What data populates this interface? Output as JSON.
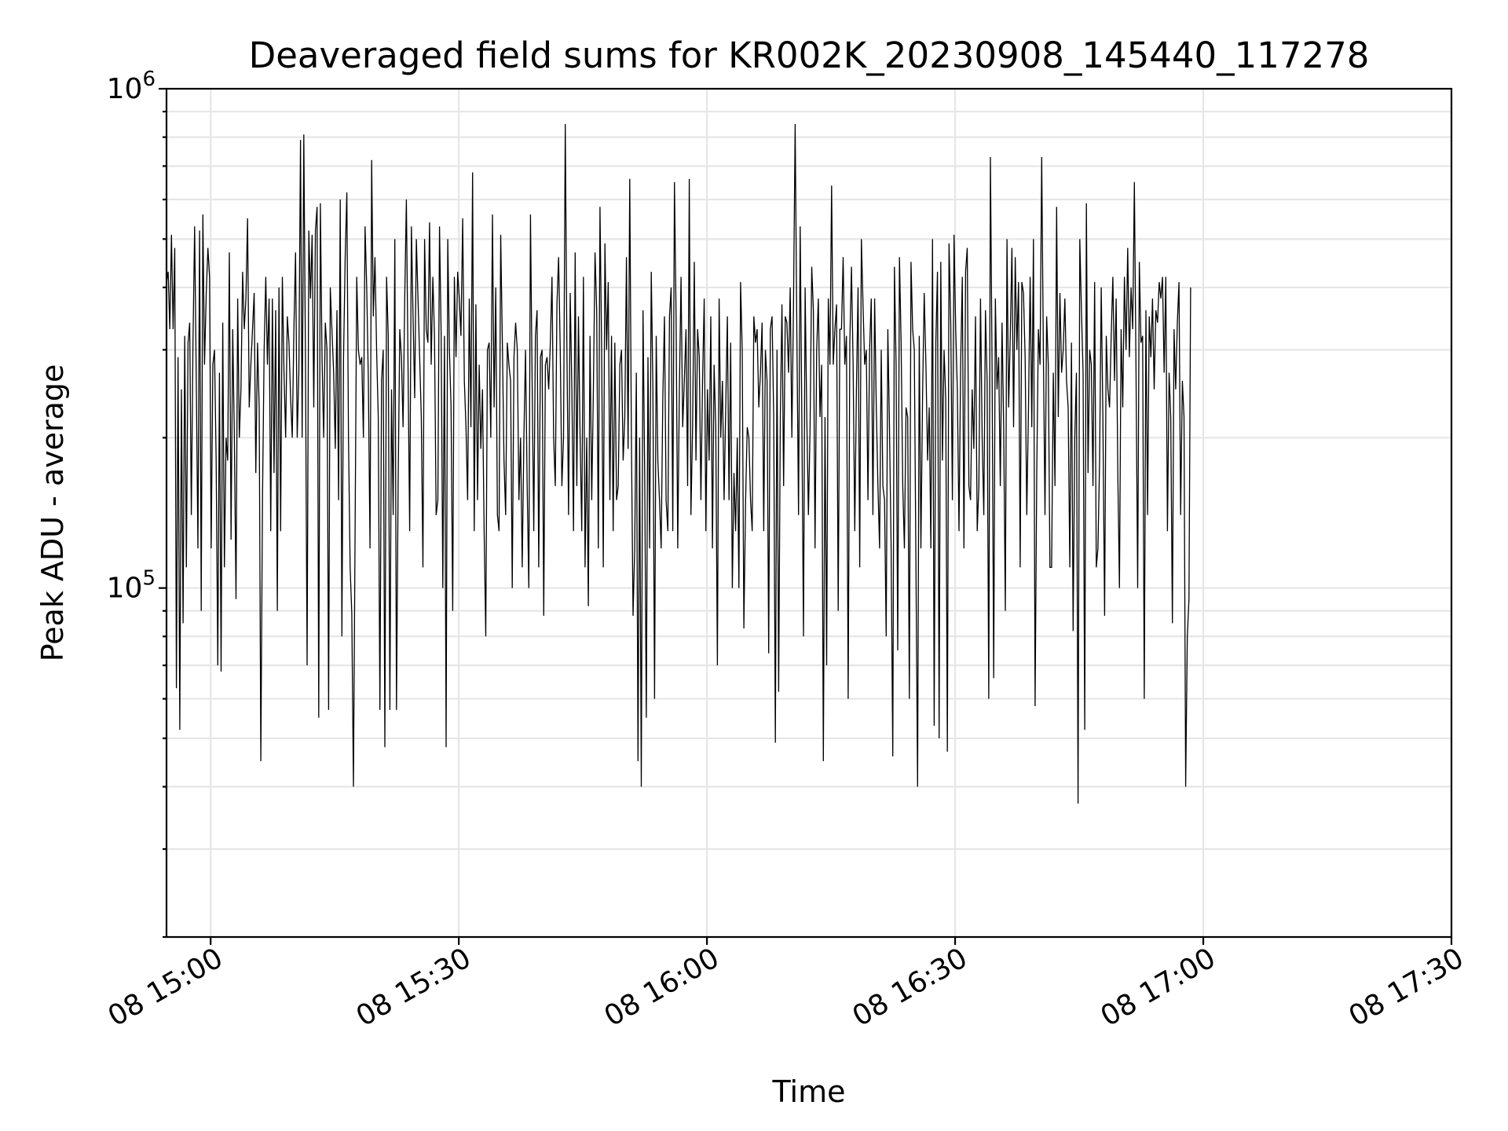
{
  "chart_data": {
    "type": "line",
    "title": "Deaveraged field sums for KR002K_20230908_145440_117278",
    "xlabel": "Time",
    "ylabel": "Peak ADU - average",
    "yscale": "log",
    "ylim": [
      20000,
      1000000
    ],
    "xlim": [
      "2023-09-08 14:54:40",
      "2023-09-08 17:30:00"
    ],
    "grid": true,
    "x_ticks": [
      "2023-09-08 15:00:00",
      "2023-09-08 15:30:00",
      "2023-09-08 16:00:00",
      "2023-09-08 16:30:00",
      "2023-09-08 17:00:00",
      "2023-09-08 17:30:00"
    ],
    "x_tick_labels": [
      "08 15:00",
      "08 15:30",
      "08 16:00",
      "08 16:30",
      "08 17:00",
      "08 17:30"
    ],
    "y_tick_labels": [
      {
        "base": "10",
        "exp": "5"
      },
      {
        "base": "10",
        "exp": "6"
      }
    ],
    "series": [
      {
        "color": "#000000",
        "x_start": "2023-09-08 14:54:40",
        "x_step_seconds": 12,
        "values": [
          410000,
          430000,
          330000,
          510000,
          330000,
          480000,
          63000,
          290000,
          52000,
          250000,
          85000,
          320000,
          110000,
          310000,
          340000,
          140000,
          310000,
          530000,
          260000,
          120000,
          520000,
          90000,
          560000,
          280000,
          390000,
          480000,
          420000,
          120000,
          280000,
          300000,
          180000,
          70000,
          270000,
          68000,
          340000,
          110000,
          200000,
          180000,
          470000,
          125000,
          330000,
          200000,
          95000,
          380000,
          200000,
          250000,
          430000,
          330000,
          380000,
          550000,
          230000,
          280000,
          330000,
          390000,
          170000,
          310000,
          230000,
          45000,
          150000,
          300000,
          420000,
          280000,
          380000,
          130000,
          380000,
          170000,
          360000,
          90000,
          400000,
          130000,
          420000,
          270000,
          200000,
          350000,
          310000,
          240000,
          200000,
          330000,
          470000,
          200000,
          270000,
          790000,
          200000,
          810000,
          290000,
          70000,
          520000,
          380000,
          510000,
          230000,
          520000,
          580000,
          55000,
          590000,
          290000,
          200000,
          340000,
          300000,
          57000,
          400000,
          330000,
          270000,
          190000,
          360000,
          150000,
          600000,
          80000,
          290000,
          460000,
          620000,
          200000,
          110000,
          89000,
          40000,
          130000,
          420000,
          300000,
          280000,
          290000,
          200000,
          530000,
          400000,
          260000,
          120000,
          720000,
          350000,
          460000,
          300000,
          220000,
          57000,
          260000,
          300000,
          48000,
          420000,
          320000,
          57000,
          250000,
          140000,
          500000,
          57000,
          160000,
          330000,
          290000,
          210000,
          380000,
          600000,
          280000,
          130000,
          530000,
          350000,
          240000,
          500000,
          380000,
          290000,
          220000,
          110000,
          500000,
          330000,
          310000,
          540000,
          280000,
          420000,
          320000,
          140000,
          150000,
          530000,
          320000,
          100000,
          320000,
          48000,
          500000,
          300000,
          230000,
          90000,
          420000,
          290000,
          430000,
          380000,
          320000,
          550000,
          260000,
          210000,
          150000,
          380000,
          210000,
          680000,
          130000,
          370000,
          150000,
          280000,
          190000,
          250000,
          130000,
          80000,
          300000,
          310000,
          200000,
          560000,
          230000,
          400000,
          140000,
          130000,
          510000,
          310000,
          180000,
          140000,
          310000,
          280000,
          260000,
          100000,
          290000,
          340000,
          300000,
          150000,
          200000,
          110000,
          200000,
          300000,
          160000,
          100000,
          560000,
          260000,
          130000,
          320000,
          360000,
          110000,
          290000,
          300000,
          88000,
          280000,
          290000,
          250000,
          310000,
          420000,
          200000,
          160000,
          370000,
          460000,
          300000,
          160000,
          200000,
          850000,
          300000,
          140000,
          390000,
          250000,
          130000,
          470000,
          160000,
          350000,
          200000,
          130000,
          420000,
          110000,
          200000,
          92000,
          320000,
          150000,
          250000,
          470000,
          360000,
          120000,
          580000,
          300000,
          110000,
          490000,
          300000,
          410000,
          150000,
          320000,
          130000,
          310000,
          150000,
          160000,
          280000,
          300000,
          180000,
          220000,
          460000,
          190000,
          660000,
          200000,
          88000,
          120000,
          270000,
          45000,
          200000,
          40000,
          360000,
          170000,
          55000,
          290000,
          120000,
          430000,
          250000,
          60000,
          320000,
          180000,
          150000,
          120000,
          240000,
          350000,
          150000,
          130000,
          350000,
          400000,
          130000,
          650000,
          350000,
          120000,
          250000,
          420000,
          210000,
          260000,
          330000,
          160000,
          660000,
          140000,
          210000,
          450000,
          180000,
          330000,
          290000,
          150000,
          260000,
          380000,
          130000,
          250000,
          180000,
          350000,
          120000,
          280000,
          210000,
          70000,
          380000,
          200000,
          260000,
          150000,
          230000,
          350000,
          150000,
          310000,
          100000,
          170000,
          130000,
          200000,
          100000,
          410000,
          300000,
          83000,
          150000,
          210000,
          200000,
          150000,
          130000,
          350000,
          310000,
          330000,
          230000,
          270000,
          340000,
          130000,
          300000,
          260000,
          74000,
          330000,
          350000,
          220000,
          49000,
          300000,
          62000,
          220000,
          370000,
          160000,
          350000,
          340000,
          270000,
          400000,
          200000,
          370000,
          850000,
          320000,
          140000,
          530000,
          220000,
          80000,
          400000,
          220000,
          140000,
          210000,
          440000,
          360000,
          120000,
          300000,
          380000,
          220000,
          280000,
          45000,
          220000,
          70000,
          380000,
          280000,
          640000,
          280000,
          330000,
          370000,
          90000,
          330000,
          330000,
          460000,
          280000,
          320000,
          60000,
          310000,
          440000,
          280000,
          130000,
          250000,
          400000,
          110000,
          500000,
          370000,
          280000,
          300000,
          150000,
          300000,
          380000,
          140000,
          380000,
          230000,
          160000,
          120000,
          300000,
          160000,
          150000,
          80000,
          330000,
          210000,
          120000,
          46000,
          440000,
          280000,
          75000,
          460000,
          310000,
          160000,
          120000,
          230000,
          220000,
          60000,
          450000,
          330000,
          300000,
          110000,
          40000,
          320000,
          120000,
          240000,
          390000,
          280000,
          180000,
          230000,
          120000,
          500000,
          53000,
          310000,
          430000,
          50000,
          450000,
          180000,
          300000,
          240000,
          47000,
          490000,
          340000,
          150000,
          510000,
          330000,
          250000,
          130000,
          280000,
          420000,
          120000,
          430000,
          480000,
          160000,
          150000,
          250000,
          190000,
          350000,
          130000,
          160000,
          380000,
          200000,
          140000,
          360000,
          260000,
          60000,
          730000,
          280000,
          66000,
          380000,
          250000,
          290000,
          160000,
          340000,
          210000,
          90000,
          500000,
          230000,
          320000,
          480000,
          210000,
          460000,
          300000,
          410000,
          110000,
          410000,
          390000,
          290000,
          140000,
          230000,
          420000,
          210000,
          500000,
          58000,
          170000,
          330000,
          280000,
          730000,
          300000,
          140000,
          350000,
          280000,
          110000,
          110000,
          270000,
          160000,
          580000,
          220000,
          390000,
          270000,
          300000,
          380000,
          260000,
          230000,
          110000,
          310000,
          82000,
          200000,
          270000,
          37000,
          500000,
          360000,
          270000,
          52000,
          590000,
          170000,
          300000,
          280000,
          160000,
          410000,
          110000,
          120000,
          180000,
          400000,
          220000,
          88000,
          320000,
          250000,
          230000,
          320000,
          420000,
          260000,
          380000,
          170000,
          100000,
          330000,
          230000,
          420000,
          300000,
          480000,
          290000,
          400000,
          330000,
          650000,
          270000,
          100000,
          450000,
          310000,
          320000,
          60000,
          360000,
          140000,
          350000,
          290000,
          380000,
          250000,
          360000,
          340000,
          410000,
          380000,
          420000,
          270000,
          420000,
          130000,
          270000,
          220000,
          85000,
          330000,
          250000,
          340000,
          410000,
          140000,
          260000,
          220000,
          40000,
          80000,
          95000,
          400000
        ]
      }
    ]
  }
}
